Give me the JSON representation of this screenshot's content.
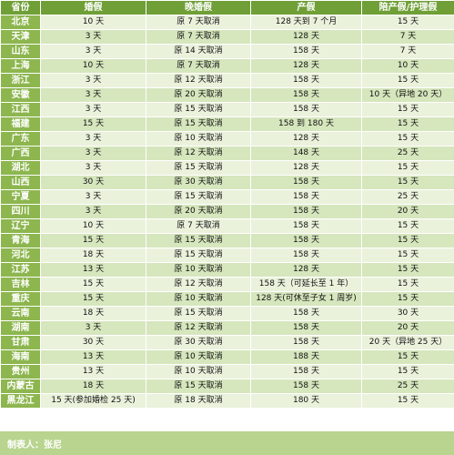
{
  "table": {
    "headers": [
      "省份",
      "婚假",
      "晚婚假",
      "产假",
      "陪产假/护理假"
    ],
    "rows": [
      [
        "北京",
        "10 天",
        "原 7 天取消",
        "128 天到 7 个月",
        "15 天"
      ],
      [
        "天津",
        "3 天",
        "原 7 天取消",
        "128 天",
        "7 天"
      ],
      [
        "山东",
        "3 天",
        "原 14 天取消",
        "158 天",
        "7 天"
      ],
      [
        "上海",
        "10 天",
        "原 7 天取消",
        "128 天",
        "10 天"
      ],
      [
        "浙江",
        "3 天",
        "原 12 天取消",
        "158 天",
        "15 天"
      ],
      [
        "安徽",
        "3 天",
        "原 20 天取消",
        "158 天",
        "10 天（异地 20 天）"
      ],
      [
        "江西",
        "3 天",
        "原 15 天取消",
        "158 天",
        "15 天"
      ],
      [
        "福建",
        "15 天",
        "原 15 天取消",
        "158 到 180 天",
        "15 天"
      ],
      [
        "广东",
        "3 天",
        "原 10 天取消",
        "128 天",
        "15 天"
      ],
      [
        "广西",
        "3 天",
        "原 12 天取消",
        "148 天",
        "25 天"
      ],
      [
        "湖北",
        "3 天",
        "原 15 天取消",
        "128 天",
        "15 天"
      ],
      [
        "山西",
        "30 天",
        "原 30 天取消",
        "158 天",
        "15 天"
      ],
      [
        "宁夏",
        "3 天",
        "原 15 天取消",
        "158 天",
        "25 天"
      ],
      [
        "四川",
        "3 天",
        "原 20 天取消",
        "158 天",
        "20 天"
      ],
      [
        "辽宁",
        "10 天",
        "原 7 天取消",
        "158 天",
        "15 天"
      ],
      [
        "青海",
        "15 天",
        "原 15 天取消",
        "158 天",
        "15 天"
      ],
      [
        "河北",
        "18 天",
        "原 15 天取消",
        "158 天",
        "15 天"
      ],
      [
        "江苏",
        "13 天",
        "原 10 天取消",
        "128 天",
        "15 天"
      ],
      [
        "吉林",
        "15 天",
        "原 12 天取消",
        "158 天（可延长至 1 年）",
        "15 天"
      ],
      [
        "重庆",
        "15 天",
        "原 10 天取消",
        "128 天(可休至子女 1 周岁)",
        "15 天"
      ],
      [
        "云南",
        "18 天",
        "原 15 天取消",
        "158 天",
        "30 天"
      ],
      [
        "湖南",
        "3 天",
        "原 12 天取消",
        "158 天",
        "20 天"
      ],
      [
        "甘肃",
        "30 天",
        "原 30 天取消",
        "158 天",
        "20 天（异地 25 天）"
      ],
      [
        "海南",
        "13 天",
        "原 10 天取消",
        "188 天",
        "15 天"
      ],
      [
        "贵州",
        "13 天",
        "原 10 天取消",
        "158 天",
        "15 天"
      ],
      [
        "内蒙古",
        "18 天",
        "原 15 天取消",
        "158 天",
        "25 天"
      ],
      [
        "黑龙江",
        "15 天(参加婚检 25 天)",
        "原 18 天取消",
        "180 天",
        "15 天"
      ]
    ]
  },
  "footer": {
    "maker": "制表人：张尼"
  },
  "colors": {
    "header": "#6f9f36",
    "province": "#8db64f",
    "row_light": "#eaf2dc",
    "row_dark": "#d6e6bd",
    "footer": "#b9d48f"
  }
}
